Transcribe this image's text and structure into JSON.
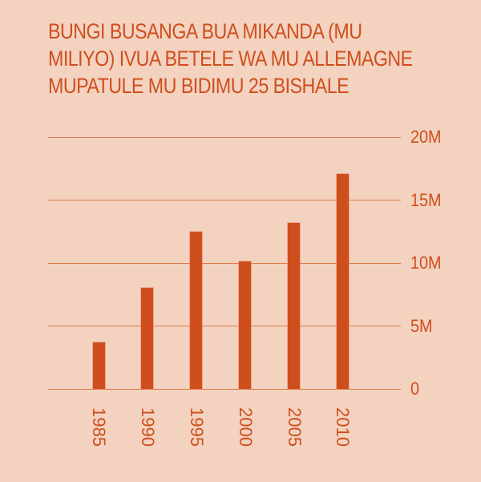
{
  "title_lines": [
    "BUNGI BUSANGA BUA MIKANDA (MU",
    "MILIYO) IVUA BETELE WA MU ALLEMAGNE",
    "MUPATULE MU BIDIMU 25 BISHALE"
  ],
  "colors": {
    "background": "#f3d3c0",
    "accent": "#cf4e1d",
    "gridline": "#e07a4f"
  },
  "y_ticks": [
    "20M",
    "15M",
    "10M",
    "5M",
    "0"
  ],
  "x_ticks": [
    "1985",
    "1990",
    "1995",
    "2000",
    "2005",
    "2010"
  ],
  "chart_data": {
    "type": "bar",
    "title": "BUNGI BUSANGA BUA MIKANDA (MU MILIYO) IVUA BETELE WA MU ALLEMAGNE MUPATULE MU BIDIMU 25 BISHALE",
    "categories": [
      "1985",
      "1990",
      "1995",
      "2000",
      "2005",
      "2010"
    ],
    "values": [
      3.7,
      8.0,
      12.5,
      10.1,
      13.2,
      17.1
    ],
    "unit": "M",
    "xlabel": "",
    "ylabel": "",
    "ylim": [
      0,
      20
    ],
    "yticks": [
      0,
      5,
      10,
      15,
      20
    ],
    "ytick_labels": [
      "0",
      "5M",
      "10M",
      "15M",
      "20M"
    ],
    "y_axis_position": "right",
    "x_tick_rotation": 90,
    "grid": true,
    "legend": null
  }
}
